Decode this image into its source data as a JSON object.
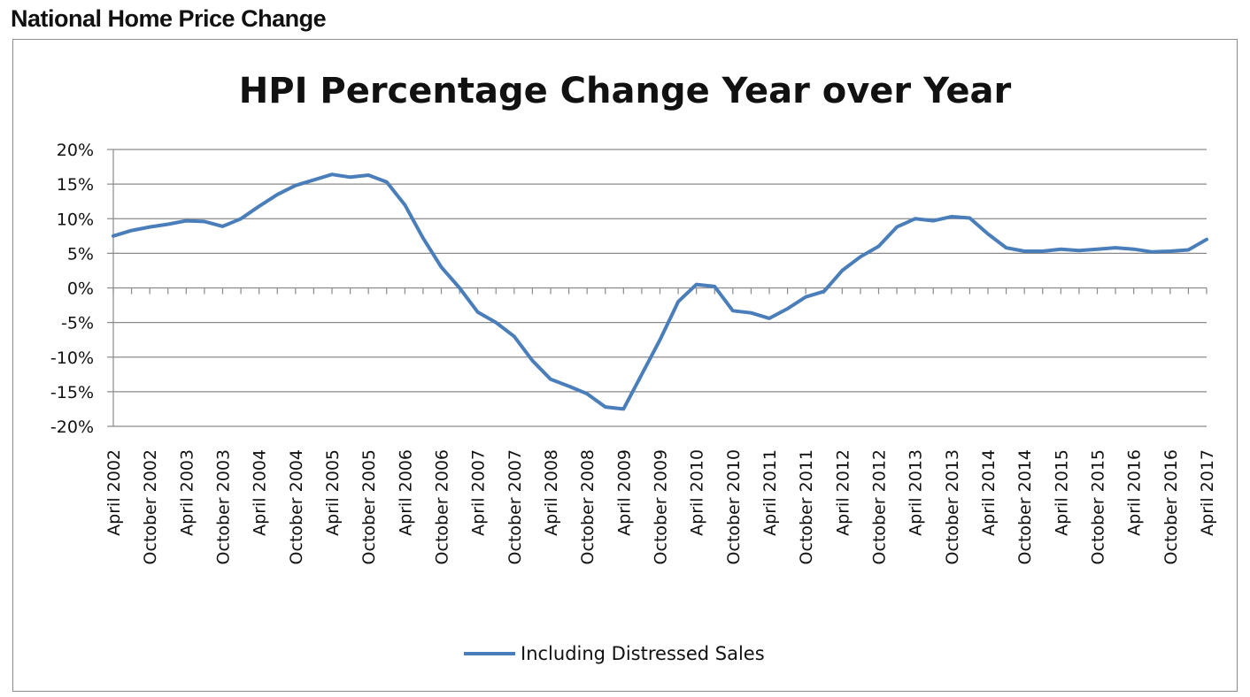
{
  "header": {
    "title": "National Home Price Change"
  },
  "chart_data": {
    "type": "line",
    "title": "HPI Percentage Change Year over Year",
    "xlabel": "",
    "ylabel": "",
    "ylim": [
      -20,
      20
    ],
    "y_ticks": [
      "20%",
      "15%",
      "10%",
      "5%",
      "0%",
      "-5%",
      "-10%",
      "-15%",
      "-20%"
    ],
    "y_tick_values": [
      20,
      15,
      10,
      5,
      0,
      -5,
      -10,
      -15,
      -20
    ],
    "x_tick_labels": [
      "April 2002",
      "October 2002",
      "April 2003",
      "October 2003",
      "April 2004",
      "October 2004",
      "April 2005",
      "October 2005",
      "April 2006",
      "October 2006",
      "April 2007",
      "October 2007",
      "April 2008",
      "October 2008",
      "April 2009",
      "October 2009",
      "April 2010",
      "October 2010",
      "April 2011",
      "October 2011",
      "April 2012",
      "October 2012",
      "April 2013",
      "October 2013",
      "April 2014",
      "October 2014",
      "April 2015",
      "October 2015",
      "April 2016",
      "October 2016",
      "April 2017"
    ],
    "grid": "horizontal",
    "legend_position": "bottom",
    "line_color": "#4a7ebb",
    "series": [
      {
        "name": "Including Distressed Sales",
        "x": [
          "Apr 2002",
          "Jul 2002",
          "Oct 2002",
          "Jan 2003",
          "Apr 2003",
          "Jul 2003",
          "Oct 2003",
          "Jan 2004",
          "Apr 2004",
          "Jul 2004",
          "Oct 2004",
          "Jan 2005",
          "Apr 2005",
          "Jul 2005",
          "Oct 2005",
          "Jan 2006",
          "Apr 2006",
          "Jul 2006",
          "Oct 2006",
          "Jan 2007",
          "Apr 2007",
          "Jul 2007",
          "Oct 2007",
          "Jan 2008",
          "Apr 2008",
          "Jul 2008",
          "Oct 2008",
          "Jan 2009",
          "Apr 2009",
          "Jul 2009",
          "Oct 2009",
          "Jan 2010",
          "Apr 2010",
          "Jul 2010",
          "Oct 2010",
          "Jan 2011",
          "Apr 2011",
          "Jul 2011",
          "Oct 2011",
          "Jan 2012",
          "Apr 2012",
          "Jul 2012",
          "Oct 2012",
          "Jan 2013",
          "Apr 2013",
          "Jul 2013",
          "Oct 2013",
          "Jan 2014",
          "Apr 2014",
          "Jul 2014",
          "Oct 2014",
          "Jan 2015",
          "Apr 2015",
          "Jul 2015",
          "Oct 2015",
          "Jan 2016",
          "Apr 2016",
          "Jul 2016",
          "Oct 2016",
          "Jan 2017",
          "Apr 2017"
        ],
        "values": [
          7.5,
          8.3,
          8.8,
          9.2,
          9.7,
          9.6,
          8.9,
          10.0,
          11.8,
          13.5,
          14.8,
          15.6,
          16.4,
          16.0,
          16.3,
          15.3,
          12.0,
          7.2,
          3.0,
          0.0,
          -3.5,
          -5.0,
          -7.0,
          -10.5,
          -13.2,
          -14.2,
          -15.3,
          -17.2,
          -17.5,
          -12.5,
          -7.5,
          -2.0,
          0.5,
          0.2,
          -3.3,
          -3.6,
          -4.4,
          -3.0,
          -1.3,
          -0.5,
          2.5,
          4.5,
          6.0,
          8.8,
          10.0,
          9.7,
          10.3,
          10.1,
          7.8,
          5.8,
          5.3,
          5.3,
          5.6,
          5.4,
          5.6,
          5.8,
          5.6,
          5.2,
          5.3,
          5.5,
          7.0
        ]
      }
    ]
  }
}
